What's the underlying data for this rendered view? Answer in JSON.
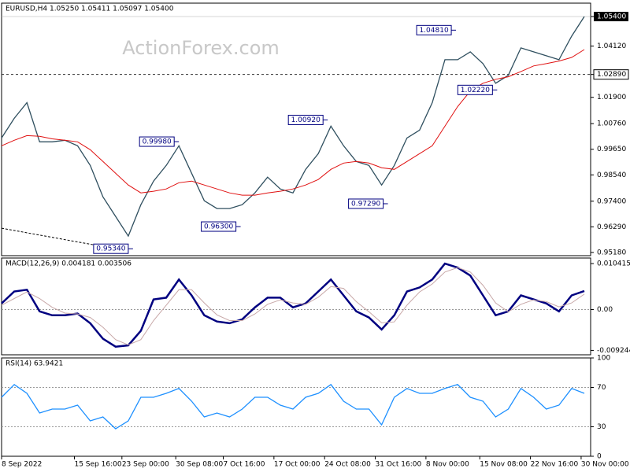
{
  "chart_data": [
    {
      "type": "line",
      "title": "EURUSD,H4 1.05250 1.05411 1.05097 1.05400",
      "watermark": "ActionForex.com",
      "x": [
        0,
        8,
        16,
        24,
        32,
        40,
        48,
        56,
        64,
        72,
        80,
        88,
        96,
        104,
        112,
        120,
        128,
        136,
        144,
        152,
        160,
        168,
        176,
        184,
        192,
        200,
        208,
        216,
        224,
        232,
        240,
        248,
        256,
        264,
        272,
        280,
        288,
        296,
        304,
        312,
        320,
        328,
        336,
        344,
        352,
        360,
        368
      ],
      "series": [
        {
          "color": "#2f4f5f",
          "values": [
            1.0014,
            1.0099,
            1.0167,
            0.9997,
            0.9997,
            1.0004,
            0.998,
            0.9895,
            0.9759,
            0.9674,
            0.9589,
            0.9725,
            0.9827,
            0.9895,
            0.998,
            0.9861,
            0.9742,
            0.9708,
            0.9708,
            0.9725,
            0.9776,
            0.9844,
            0.9793,
            0.9776,
            0.9878,
            0.9946,
            1.0065,
            0.998,
            0.9912,
            0.9895,
            0.981,
            0.9895,
            1.0014,
            1.0048,
            1.0167,
            1.0353,
            1.0353,
            1.0387,
            1.0336,
            1.0251,
            1.0285,
            1.0404,
            1.0387,
            1.037,
            1.0353,
            1.0455,
            1.054
          ]
        },
        {
          "color": "#e01010",
          "values": [
            0.998,
            1.0004,
            1.0024,
            1.0021,
            1.001,
            1.0004,
            0.9997,
            0.9963,
            0.9912,
            0.9861,
            0.981,
            0.9776,
            0.9783,
            0.9793,
            0.982,
            0.9827,
            0.981,
            0.9793,
            0.9776,
            0.9766,
            0.9766,
            0.9776,
            0.9783,
            0.9793,
            0.981,
            0.9834,
            0.9878,
            0.9905,
            0.9912,
            0.9905,
            0.9885,
            0.9878,
            0.9912,
            0.9946,
            0.998,
            1.0065,
            1.015,
            1.0217,
            1.0251,
            1.0268,
            1.0279,
            1.0302,
            1.0326,
            1.0336,
            1.0347,
            1.0363,
            1.0397
          ]
        }
      ],
      "annotations": [
        {
          "x": 81,
          "value": 0.9534,
          "label": "0.95340"
        },
        {
          "x": 110,
          "value": 0.9998,
          "label": "0.99980"
        },
        {
          "x": 149,
          "value": 0.963,
          "label": "0.96300"
        },
        {
          "x": 204,
          "value": 1.0092,
          "label": "1.00920"
        },
        {
          "x": 242,
          "value": 0.9729,
          "label": "0.97290"
        },
        {
          "x": 285,
          "value": 1.0481,
          "label": "1.04810"
        },
        {
          "x": 311,
          "value": 1.0222,
          "label": "1.02220"
        }
      ],
      "trendline": {
        "x": [
          0,
          63
        ],
        "values": [
          0.9623,
          0.9545
        ]
      },
      "current_price": 1.054,
      "level_line": 1.0289,
      "ylim": [
        0.9504,
        1.0598
      ],
      "yticks": [
        {
          "value": 1.054,
          "label": "1.05400"
        },
        {
          "value": 1.0412,
          "label": "1.04120"
        },
        {
          "value": 1.0289,
          "label": "1.02890"
        },
        {
          "value": 1.019,
          "label": "1.01900"
        },
        {
          "value": 1.0076,
          "label": "1.00760"
        },
        {
          "value": 0.9965,
          "label": "0.99650"
        },
        {
          "value": 0.9854,
          "label": "0.98540"
        },
        {
          "value": 0.974,
          "label": "0.97400"
        },
        {
          "value": 0.9629,
          "label": "0.96290"
        },
        {
          "value": 0.9518,
          "label": "0.95180"
        }
      ]
    },
    {
      "type": "line",
      "title": "MACD(12,26,9) 0.004181 0.003506",
      "x": [
        0,
        8,
        16,
        24,
        32,
        40,
        48,
        56,
        64,
        72,
        80,
        88,
        96,
        104,
        112,
        120,
        128,
        136,
        144,
        152,
        160,
        168,
        176,
        184,
        192,
        200,
        208,
        216,
        224,
        232,
        240,
        248,
        256,
        264,
        272,
        280,
        288,
        296,
        304,
        312,
        320,
        328,
        336,
        344,
        352,
        360,
        368
      ],
      "series": [
        {
          "color": "#000080",
          "values": [
            0.0014,
            0.0041,
            0.0045,
            -0.0004,
            -0.0013,
            -0.0013,
            -0.0009,
            -0.0031,
            -0.0066,
            -0.0084,
            -0.0081,
            -0.0048,
            0.0023,
            0.0027,
            0.0068,
            0.0032,
            -0.0013,
            -0.0027,
            -0.0031,
            -0.0022,
            0.0005,
            0.0027,
            0.0027,
            0.0005,
            0.0014,
            0.0041,
            0.0068,
            0.0032,
            -0.0004,
            -0.0018,
            -0.0045,
            -0.0013,
            0.0041,
            0.005,
            0.0068,
            0.0104,
            0.0095,
            0.0077,
            0.0032,
            -0.0013,
            -0.0004,
            0.0032,
            0.0023,
            0.0014,
            -0.0004,
            0.0032,
            0.0042
          ]
        },
        {
          "color": "#c8a8a8",
          "values": [
            0.001,
            0.0025,
            0.004,
            0.0025,
            0.0005,
            -0.0008,
            -0.001,
            -0.0018,
            -0.004,
            -0.0068,
            -0.008,
            -0.0068,
            -0.0025,
            0.001,
            0.0045,
            0.0045,
            0.0015,
            -0.0012,
            -0.0025,
            -0.0025,
            -0.001,
            0.0012,
            0.0022,
            0.0015,
            0.0012,
            0.0028,
            0.0052,
            0.0048,
            0.0018,
            -0.0005,
            -0.003,
            -0.0028,
            0.001,
            0.004,
            0.0058,
            0.0085,
            0.0095,
            0.0085,
            0.0055,
            0.0015,
            -0.0005,
            0.0012,
            0.0022,
            0.0018,
            0.0006,
            0.0015,
            0.0035
          ]
        }
      ],
      "levels": [
        0
      ],
      "ylim": [
        -0.01024,
        0.01167
      ],
      "yticks": [
        0.010415,
        {
          "value": 0,
          "label": "0.00"
        },
        -0.009244
      ]
    },
    {
      "type": "line",
      "title": "RSI(14) 63.9421",
      "x": [
        0,
        8,
        16,
        24,
        32,
        40,
        48,
        56,
        64,
        72,
        80,
        88,
        96,
        104,
        112,
        120,
        128,
        136,
        144,
        152,
        160,
        168,
        176,
        184,
        192,
        200,
        208,
        216,
        224,
        232,
        240,
        248,
        256,
        264,
        272,
        280,
        288,
        296,
        304,
        312,
        320,
        328,
        336,
        344,
        352,
        360,
        368
      ],
      "series": [
        {
          "color": "#1e90ff",
          "values": [
            60,
            73,
            64,
            44,
            48,
            48,
            52,
            36,
            40,
            28,
            36,
            60,
            60,
            64,
            69,
            56,
            40,
            44,
            40,
            48,
            60,
            60,
            52,
            48,
            60,
            64,
            73,
            56,
            48,
            48,
            32,
            60,
            69,
            64,
            64,
            69,
            73,
            60,
            56,
            40,
            48,
            69,
            60,
            48,
            52,
            69,
            64
          ]
        }
      ],
      "levels": [
        70,
        30
      ],
      "ylim": [
        0,
        100
      ],
      "yticks": [
        100,
        70,
        30,
        0
      ],
      "xlim": [
        0,
        372
      ],
      "xticks": [
        {
          "value": 0,
          "label": "8 Sep 2022"
        },
        {
          "value": 46,
          "label": "15 Sep 16:00"
        },
        {
          "value": 76,
          "label": "23 Sep 00:00"
        },
        {
          "value": 110,
          "label": "30 Sep 08:00"
        },
        {
          "value": 140,
          "label": "7 Oct 16:00"
        },
        {
          "value": 172,
          "label": "17 Oct 00:00"
        },
        {
          "value": 204,
          "label": "24 Oct 08:00"
        },
        {
          "value": 236,
          "label": "31 Oct 16:00"
        },
        {
          "value": 268,
          "label": "8 Nov 00:00"
        },
        {
          "value": 302,
          "label": "15 Nov 08:00"
        },
        {
          "value": 334,
          "label": "22 Nov 16:00"
        },
        {
          "value": 366,
          "label": "30 Nov 00:00"
        }
      ]
    }
  ]
}
